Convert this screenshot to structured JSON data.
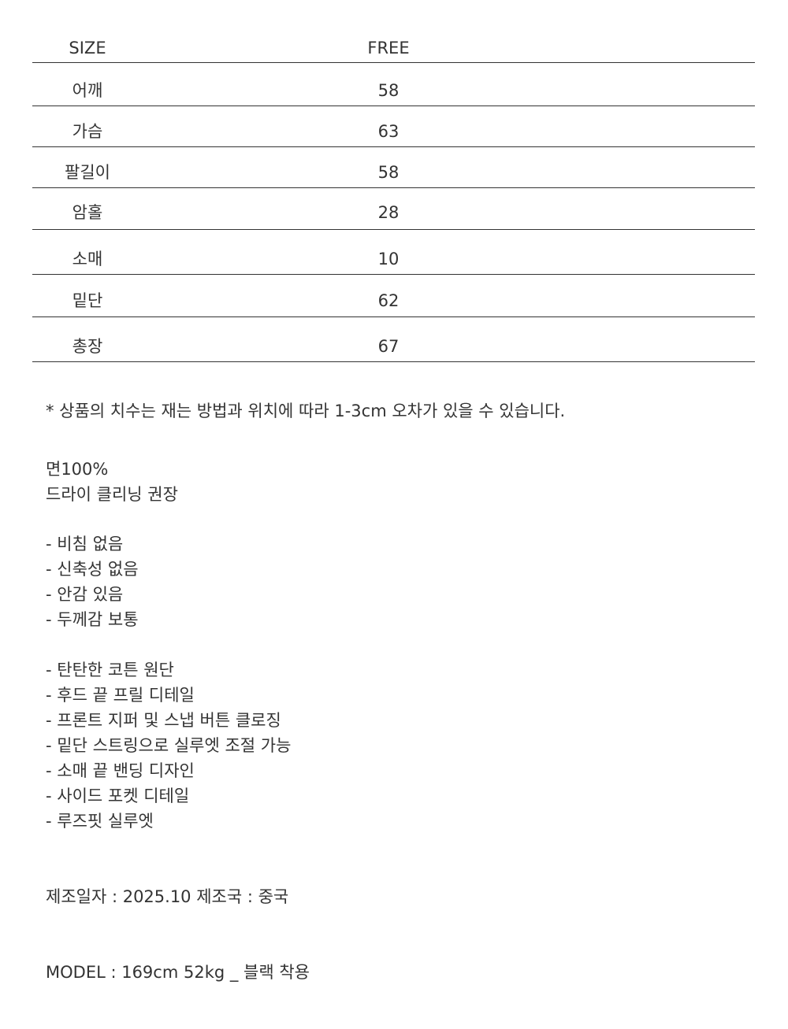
{
  "size_table": {
    "header": {
      "label": "SIZE",
      "value": "FREE"
    },
    "rows": [
      {
        "label": "어깨",
        "value": "58"
      },
      {
        "label": "가슴",
        "value": "63"
      },
      {
        "label": "팔길이",
        "value": "58"
      },
      {
        "label": "암홀",
        "value": "28"
      },
      {
        "label": "소매",
        "value": "10"
      },
      {
        "label": "밑단",
        "value": "62"
      },
      {
        "label": "총장",
        "value": "67"
      }
    ]
  },
  "note": "* 상품의 치수는 재는 방법과 위치에 따라 1-3cm 오차가 있을 수 있습니다.",
  "material": [
    "면100%",
    "드라이 클리닝 권장"
  ],
  "properties": [
    "-  비침 없음",
    "- 신축성 없음",
    "- 안감 있음",
    "- 두께감 보통"
  ],
  "features": [
    "- 탄탄한 코튼 원단",
    "- 후드 끝 프릴 디테일",
    "- 프론트 지퍼 및 스냅 버튼 클로징",
    "- 밑단 스트링으로 실루엣 조절 가능",
    "- 소매 끝 밴딩 디자인",
    "- 사이드 포켓 디테일",
    "- 루즈핏 실루엣"
  ],
  "manufacture": "제조일자 : 2025.10  제조국 : 중국",
  "model": "MODEL : 169cm 52kg _ 블랙 착용"
}
